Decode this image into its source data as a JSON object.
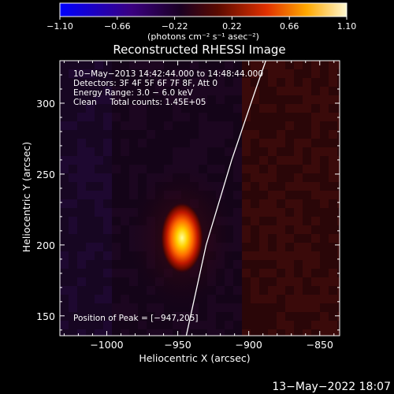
{
  "chart_data": {
    "type": "heatmap",
    "title": "Reconstructed RHESSI Image",
    "xlabel": "Heliocentric X (arcsec)",
    "ylabel": "Heliocentric Y (arcsec)",
    "xlim": [
      -1033,
      -836
    ],
    "ylim": [
      136,
      330
    ],
    "x_ticks": [
      -1000,
      -950,
      -900,
      -850
    ],
    "x_tick_labels": [
      "−1000",
      "−950",
      "−900",
      "−850"
    ],
    "y_ticks": [
      150,
      200,
      250,
      300
    ],
    "y_tick_labels": [
      "150",
      "200",
      "250",
      "300"
    ],
    "colorbar": {
      "range": [
        -1.1,
        1.1
      ],
      "tick_labels": [
        "−1.10",
        "−0.66",
        "−0.22",
        "0.22",
        "0.66",
        "1.10"
      ],
      "label": "(photons cm⁻² s⁻¹ asec⁻²)",
      "colormap": [
        "#0000ff",
        "#2a0066",
        "#000000",
        "#7a1a00",
        "#ff6000",
        "#ffc800",
        "#ffffff"
      ]
    },
    "annotations": [
      "10−May−2013 14:42:44.000 to 14:48:44.000",
      "Detectors: 3F 4F 5F 6F 7F 8F, Att 0",
      "Energy Range: 3.0 − 6.0 keV",
      "Clean     Total counts: 1.45E+05"
    ],
    "peak_label": "Position of Peak = [−947,205]",
    "peak": {
      "x": -947,
      "y": 205,
      "value": 1.1
    },
    "limb_curve": [
      {
        "x": -944,
        "y": 136
      },
      {
        "x": -930,
        "y": 200
      },
      {
        "x": -912,
        "y": 260
      },
      {
        "x": -895,
        "y": 310
      },
      {
        "x": -888,
        "y": 330
      }
    ]
  },
  "footer": {
    "timestamp": "13−May−2022 18:07"
  },
  "colors": {
    "background": "#000000",
    "foreground": "#ffffff"
  }
}
